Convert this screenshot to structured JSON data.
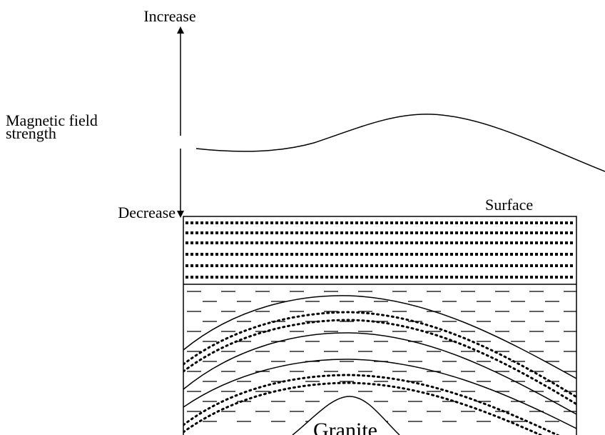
{
  "labels": {
    "increase": "Increase",
    "magnetic_field": [
      "Magnetic field",
      "strength"
    ],
    "decrease": "Decrease",
    "surface": "Surface",
    "granite": "Granite"
  }
}
